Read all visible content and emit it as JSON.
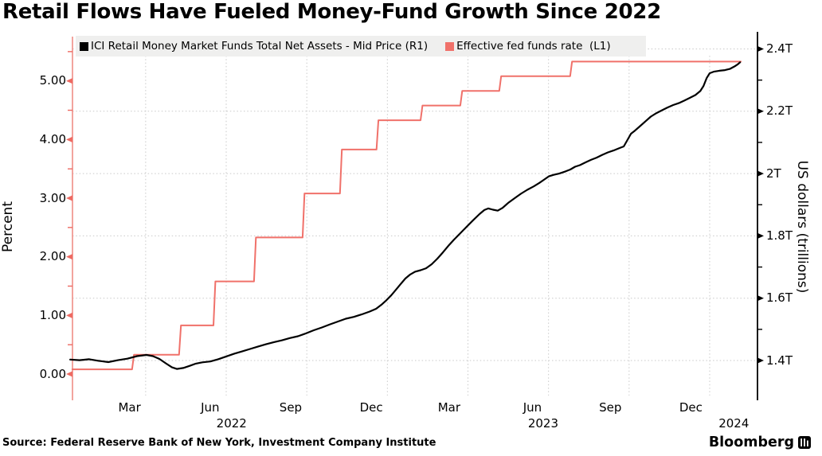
{
  "title": "Retail Flows Have Fueled Money-Fund Growth Since 2022",
  "legend": {
    "items": [
      {
        "label": "ICI Retail Money Market Funds Total Net Assets - Mid Price (R1)",
        "color": "#000000"
      },
      {
        "label": "Effective fed funds rate  (L1)",
        "color": "#f0716a"
      }
    ]
  },
  "source": "Source: Federal Reserve Bank of New York, Investment Company Institute",
  "brand": "Bloomberg",
  "chart_data": {
    "type": "line",
    "x_unit": "months since Jan 2022 (t); t=0 is 2022-01-01, t=24 is 2024-01-01",
    "left_axis": {
      "title": "Percent",
      "ylim": [
        0,
        5.5
      ],
      "ticks": [
        {
          "v": 5.0,
          "label": "5.00"
        },
        {
          "v": 4.0,
          "label": "4.00"
        },
        {
          "v": 3.0,
          "label": "3.00"
        },
        {
          "v": 2.0,
          "label": "2.00"
        },
        {
          "v": 1.0,
          "label": "1.00"
        },
        {
          "v": 0.0,
          "label": "0.00"
        }
      ],
      "minor_ticks": [
        5.5,
        4.5,
        3.5,
        2.5,
        1.5,
        0.5
      ],
      "color": "#ee6a62"
    },
    "right_axis": {
      "title": "US dollars (trillions)",
      "ylim": [
        1.4,
        2.45
      ],
      "ticks": [
        {
          "v": 2.4,
          "label": "2.4T"
        },
        {
          "v": 2.2,
          "label": "2.2T"
        },
        {
          "v": 2.0,
          "label": "2T"
        },
        {
          "v": 1.8,
          "label": "1.8T"
        },
        {
          "v": 1.6,
          "label": "1.6T"
        },
        {
          "v": 1.4,
          "label": "1.4T"
        }
      ],
      "minor_ticks": [
        2.3,
        2.1,
        1.9,
        1.7,
        1.5
      ],
      "gridlines": [
        2.4,
        2.2,
        2.0,
        1.8,
        1.6,
        1.4
      ],
      "color": "#000000"
    },
    "x_axis": {
      "gridlines_t": [
        3,
        6,
        9,
        12,
        15,
        18,
        21,
        24
      ],
      "month_labels": [
        {
          "t": 2.4,
          "label": "Mar"
        },
        {
          "t": 5.4,
          "label": "Jun"
        },
        {
          "t": 8.4,
          "label": "Sep"
        },
        {
          "t": 11.4,
          "label": "Dec"
        },
        {
          "t": 14.3,
          "label": "Mar"
        },
        {
          "t": 17.4,
          "label": "Jun"
        },
        {
          "t": 20.3,
          "label": "Sep"
        },
        {
          "t": 23.3,
          "label": "Dec"
        }
      ],
      "year_labels": [
        {
          "t": 6.2,
          "label": "2022"
        },
        {
          "t": 17.8,
          "label": "2023"
        },
        {
          "t": 24.9,
          "label": "2024"
        }
      ]
    },
    "series": [
      {
        "name": "Effective fed funds rate (L1)",
        "axis": "left",
        "style": "step",
        "color": "#f0716a",
        "points": [
          [
            0.27,
            0.08
          ],
          [
            2.53,
            0.33
          ],
          [
            4.28,
            0.83
          ],
          [
            5.56,
            1.58
          ],
          [
            7.07,
            2.33
          ],
          [
            8.88,
            3.08
          ],
          [
            10.27,
            3.83
          ],
          [
            11.63,
            4.33
          ],
          [
            13.27,
            4.58
          ],
          [
            14.75,
            4.83
          ],
          [
            16.2,
            5.08
          ],
          [
            18.84,
            5.33
          ],
          [
            25.16,
            5.33
          ]
        ]
      },
      {
        "name": "ICI Retail Money Market Funds Total Net Assets - Mid Price (R1)",
        "axis": "right",
        "style": "line",
        "color": "#000000",
        "points": [
          [
            0.19,
            1.403
          ],
          [
            0.54,
            1.401
          ],
          [
            0.9,
            1.404
          ],
          [
            1.25,
            1.399
          ],
          [
            1.61,
            1.395
          ],
          [
            1.97,
            1.401
          ],
          [
            2.32,
            1.406
          ],
          [
            2.68,
            1.414
          ],
          [
            3.03,
            1.418
          ],
          [
            3.27,
            1.414
          ],
          [
            3.51,
            1.405
          ],
          [
            3.75,
            1.391
          ],
          [
            3.98,
            1.378
          ],
          [
            4.16,
            1.373
          ],
          [
            4.4,
            1.376
          ],
          [
            4.64,
            1.383
          ],
          [
            4.87,
            1.39
          ],
          [
            5.11,
            1.394
          ],
          [
            5.41,
            1.397
          ],
          [
            5.7,
            1.404
          ],
          [
            6.0,
            1.413
          ],
          [
            6.3,
            1.422
          ],
          [
            6.59,
            1.429
          ],
          [
            6.89,
            1.437
          ],
          [
            7.19,
            1.445
          ],
          [
            7.48,
            1.452
          ],
          [
            7.78,
            1.459
          ],
          [
            8.08,
            1.465
          ],
          [
            8.37,
            1.472
          ],
          [
            8.67,
            1.478
          ],
          [
            8.97,
            1.487
          ],
          [
            9.26,
            1.497
          ],
          [
            9.56,
            1.506
          ],
          [
            9.86,
            1.516
          ],
          [
            10.15,
            1.525
          ],
          [
            10.45,
            1.534
          ],
          [
            10.75,
            1.54
          ],
          [
            11.04,
            1.548
          ],
          [
            11.34,
            1.557
          ],
          [
            11.58,
            1.566
          ],
          [
            11.78,
            1.579
          ],
          [
            11.96,
            1.593
          ],
          [
            12.14,
            1.609
          ],
          [
            12.32,
            1.627
          ],
          [
            12.5,
            1.646
          ],
          [
            12.67,
            1.663
          ],
          [
            12.85,
            1.676
          ],
          [
            13.03,
            1.685
          ],
          [
            13.24,
            1.69
          ],
          [
            13.44,
            1.696
          ],
          [
            13.65,
            1.709
          ],
          [
            13.86,
            1.727
          ],
          [
            14.07,
            1.747
          ],
          [
            14.27,
            1.768
          ],
          [
            14.48,
            1.788
          ],
          [
            14.72,
            1.809
          ],
          [
            14.95,
            1.829
          ],
          [
            15.19,
            1.85
          ],
          [
            15.43,
            1.87
          ],
          [
            15.61,
            1.883
          ],
          [
            15.76,
            1.888
          ],
          [
            15.93,
            1.884
          ],
          [
            16.11,
            1.881
          ],
          [
            16.29,
            1.89
          ],
          [
            16.5,
            1.906
          ],
          [
            16.74,
            1.921
          ],
          [
            16.97,
            1.935
          ],
          [
            17.21,
            1.948
          ],
          [
            17.45,
            1.959
          ],
          [
            17.66,
            1.97
          ],
          [
            17.83,
            1.98
          ],
          [
            18.01,
            1.991
          ],
          [
            18.19,
            1.996
          ],
          [
            18.4,
            2.0
          ],
          [
            18.63,
            2.007
          ],
          [
            18.81,
            2.013
          ],
          [
            18.99,
            2.022
          ],
          [
            19.17,
            2.027
          ],
          [
            19.38,
            2.036
          ],
          [
            19.58,
            2.044
          ],
          [
            19.79,
            2.051
          ],
          [
            20.0,
            2.06
          ],
          [
            20.21,
            2.068
          ],
          [
            20.42,
            2.074
          ],
          [
            20.62,
            2.081
          ],
          [
            20.8,
            2.087
          ],
          [
            20.92,
            2.105
          ],
          [
            21.07,
            2.128
          ],
          [
            21.22,
            2.138
          ],
          [
            21.39,
            2.151
          ],
          [
            21.6,
            2.167
          ],
          [
            21.81,
            2.183
          ],
          [
            22.02,
            2.194
          ],
          [
            22.22,
            2.203
          ],
          [
            22.43,
            2.212
          ],
          [
            22.64,
            2.22
          ],
          [
            22.85,
            2.226
          ],
          [
            23.05,
            2.234
          ],
          [
            23.26,
            2.243
          ],
          [
            23.47,
            2.252
          ],
          [
            23.65,
            2.265
          ],
          [
            23.77,
            2.281
          ],
          [
            23.89,
            2.307
          ],
          [
            24.0,
            2.322
          ],
          [
            24.15,
            2.327
          ],
          [
            24.36,
            2.33
          ],
          [
            24.57,
            2.332
          ],
          [
            24.75,
            2.336
          ],
          [
            24.93,
            2.344
          ],
          [
            25.05,
            2.351
          ],
          [
            25.13,
            2.357
          ]
        ]
      }
    ]
  }
}
